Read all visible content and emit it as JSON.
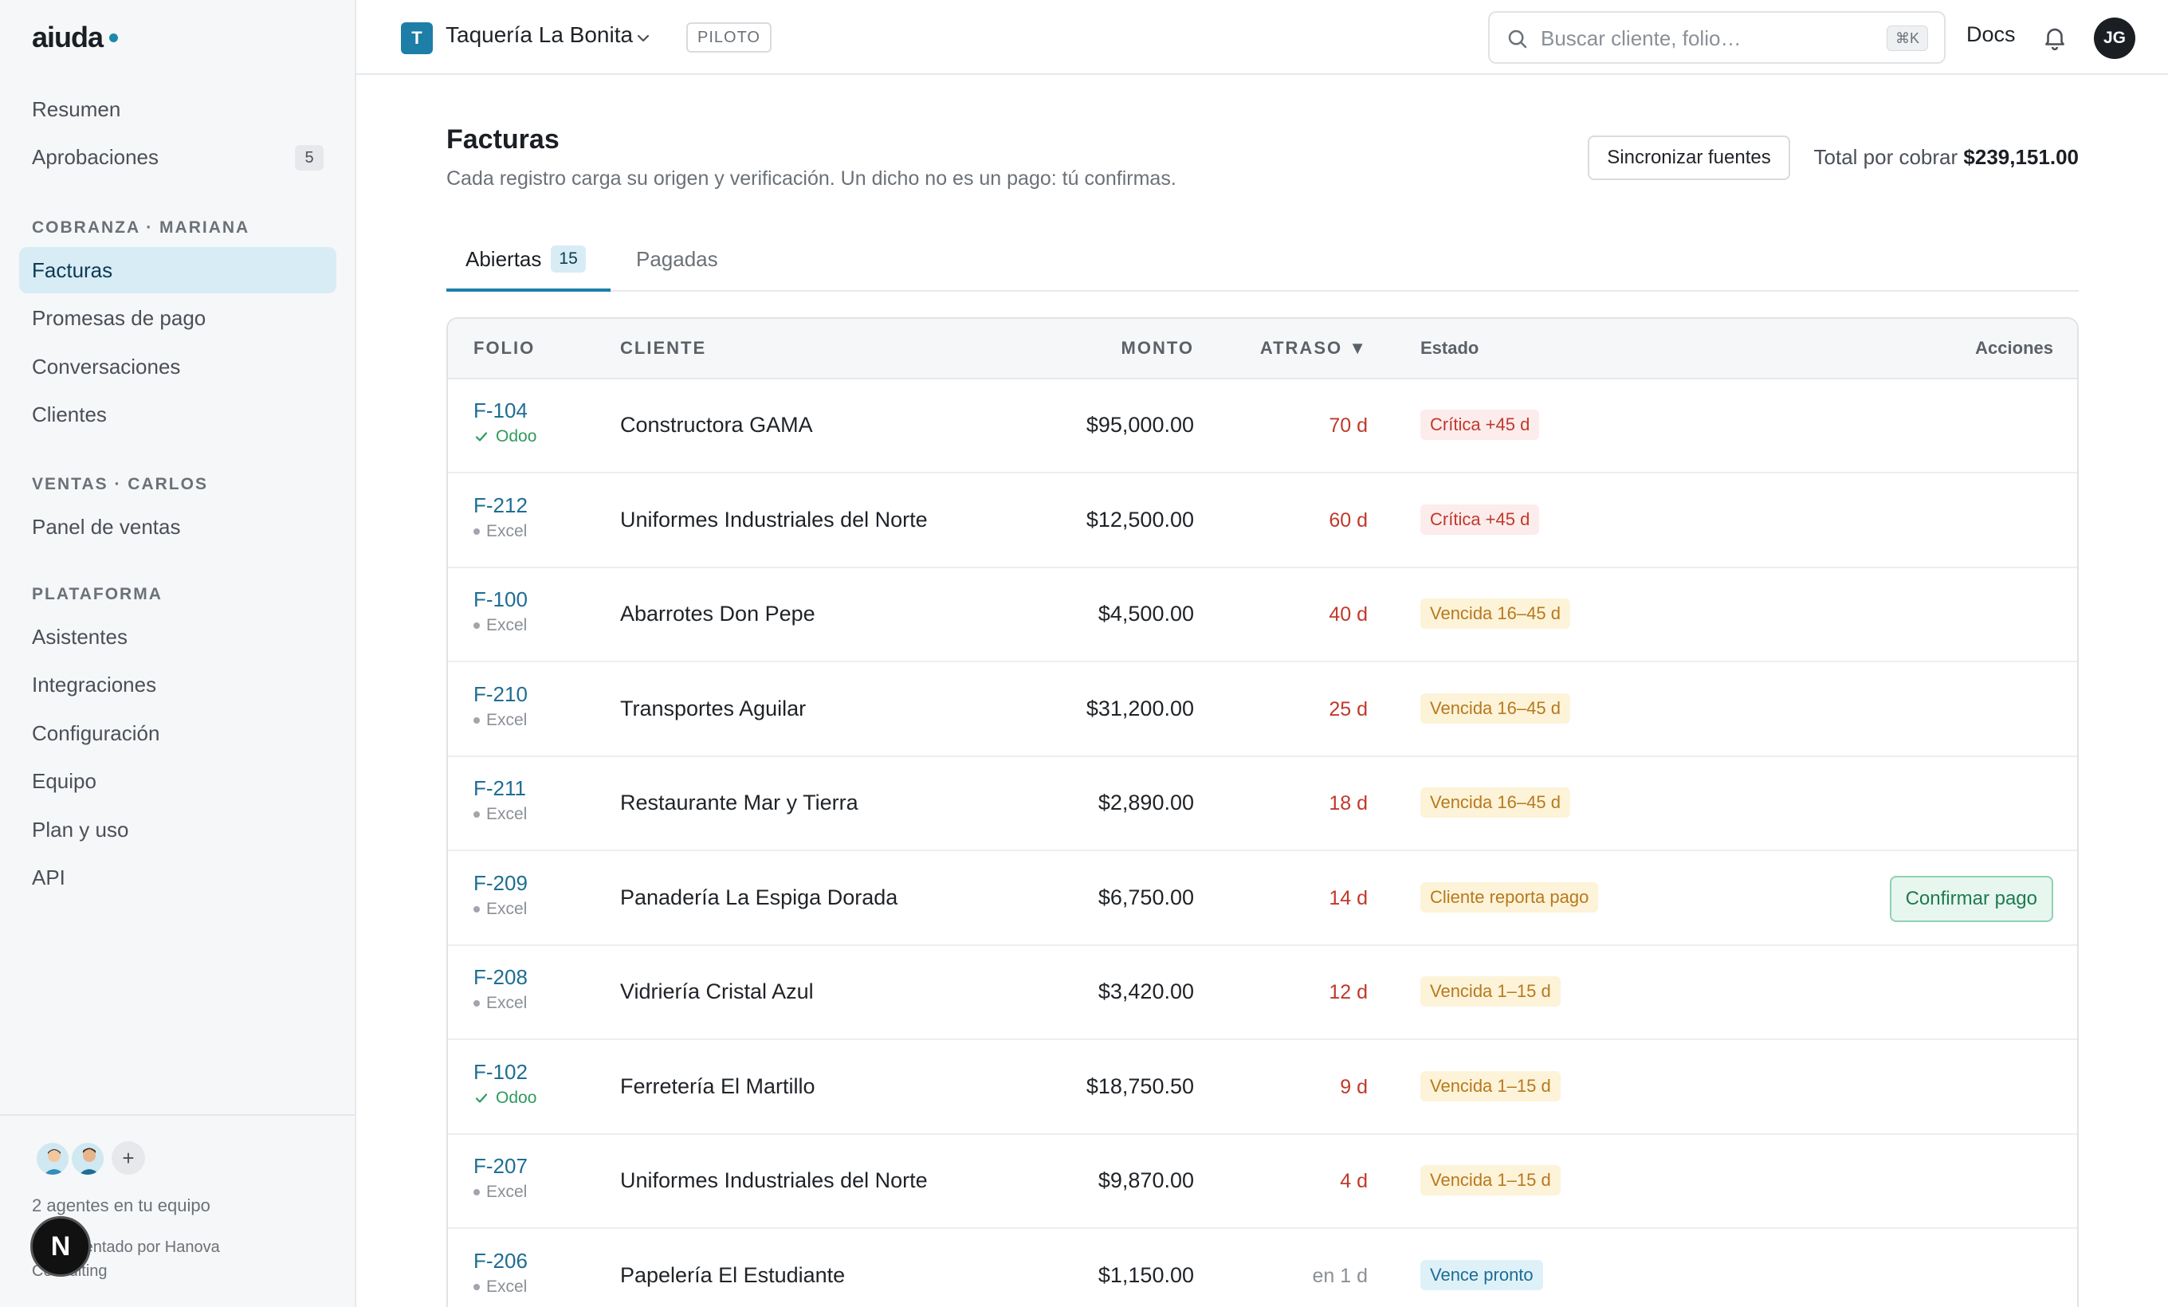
{
  "brand": {
    "name": "aiuda"
  },
  "sidebar": {
    "top_items": [
      {
        "label": "Resumen"
      },
      {
        "label": "Aprobaciones",
        "badge": "5"
      }
    ],
    "sections": [
      {
        "title": "COBRANZA · MARIANA",
        "items": [
          {
            "label": "Facturas",
            "active": true
          },
          {
            "label": "Promesas de pago"
          },
          {
            "label": "Conversaciones"
          },
          {
            "label": "Clientes"
          }
        ]
      },
      {
        "title": "VENTAS · CARLOS",
        "items": [
          {
            "label": "Panel de ventas"
          }
        ]
      },
      {
        "title": "PLATAFORMA",
        "items": [
          {
            "label": "Asistentes"
          },
          {
            "label": "Integraciones"
          },
          {
            "label": "Configuración"
          },
          {
            "label": "Equipo"
          },
          {
            "label": "Plan y uso"
          },
          {
            "label": "API"
          }
        ]
      }
    ],
    "footer": {
      "add_label": "+",
      "team_text": "2 agentes en tu equipo",
      "implemented_text": "Implementado por Hanova Consulting",
      "n_badge": "N"
    }
  },
  "topbar": {
    "workspace_initial": "T",
    "workspace_name": "Taquería La Bonita",
    "pilot_badge": "PILOTO",
    "search_placeholder": "Buscar cliente, folio…",
    "search_shortcut": "⌘K",
    "docs_label": "Docs",
    "user_initials": "JG"
  },
  "page": {
    "title": "Facturas",
    "subtitle": "Cada registro carga su origen y verificación. Un dicho no es un pago: tú confirmas.",
    "sync_button": "Sincronizar fuentes",
    "total_label": "Total por cobrar",
    "total_value": "$239,151.00"
  },
  "tabs": [
    {
      "label": "Abiertas",
      "count": "15",
      "active": true
    },
    {
      "label": "Pagadas"
    }
  ],
  "table": {
    "columns": {
      "folio": "FOLIO",
      "client": "CLIENTE",
      "amount": "MONTO",
      "delay": "ATRASO ▼",
      "status": "Estado",
      "actions": "Acciones"
    },
    "rows": [
      {
        "folio": "F-104",
        "source": "Odoo",
        "verified": true,
        "client": "Constructora GAMA",
        "amount": "$95,000.00",
        "delay": "70 d",
        "status": "Crítica +45 d",
        "status_kind": "critical"
      },
      {
        "folio": "F-212",
        "source": "Excel",
        "verified": false,
        "client": "Uniformes Industriales del Norte",
        "amount": "$12,500.00",
        "delay": "60 d",
        "status": "Crítica +45 d",
        "status_kind": "critical"
      },
      {
        "folio": "F-100",
        "source": "Excel",
        "verified": false,
        "client": "Abarrotes Don Pepe",
        "amount": "$4,500.00",
        "delay": "40 d",
        "status": "Vencida 16–45 d",
        "status_kind": "overdue"
      },
      {
        "folio": "F-210",
        "source": "Excel",
        "verified": false,
        "client": "Transportes Aguilar",
        "amount": "$31,200.00",
        "delay": "25 d",
        "status": "Vencida 16–45 d",
        "status_kind": "overdue"
      },
      {
        "folio": "F-211",
        "source": "Excel",
        "verified": false,
        "client": "Restaurante Mar y Tierra",
        "amount": "$2,890.00",
        "delay": "18 d",
        "status": "Vencida 16–45 d",
        "status_kind": "overdue"
      },
      {
        "folio": "F-209",
        "source": "Excel",
        "verified": false,
        "client": "Panadería La Espiga Dorada",
        "amount": "$6,750.00",
        "delay": "14 d",
        "status": "Cliente reporta pago",
        "status_kind": "overdue",
        "action": "Confirmar pago"
      },
      {
        "folio": "F-208",
        "source": "Excel",
        "verified": false,
        "client": "Vidriería Cristal Azul",
        "amount": "$3,420.00",
        "delay": "12 d",
        "status": "Vencida 1–15 d",
        "status_kind": "overdue"
      },
      {
        "folio": "F-102",
        "source": "Odoo",
        "verified": true,
        "client": "Ferretería El Martillo",
        "amount": "$18,750.50",
        "delay": "9 d",
        "status": "Vencida 1–15 d",
        "status_kind": "overdue"
      },
      {
        "folio": "F-207",
        "source": "Excel",
        "verified": false,
        "client": "Uniformes Industriales del Norte",
        "amount": "$9,870.00",
        "delay": "4 d",
        "status": "Vencida 1–15 d",
        "status_kind": "overdue"
      },
      {
        "folio": "F-206",
        "source": "Excel",
        "verified": false,
        "client": "Papelería El Estudiante",
        "amount": "$1,150.00",
        "delay": "en 1 d",
        "delay_muted": true,
        "status": "Vence pronto",
        "status_kind": "soon"
      }
    ]
  },
  "colors": {
    "accent": "#1d7ea8",
    "critical": "#c0392b",
    "overdue": "#b7791f",
    "success": "#1e7a4f"
  }
}
